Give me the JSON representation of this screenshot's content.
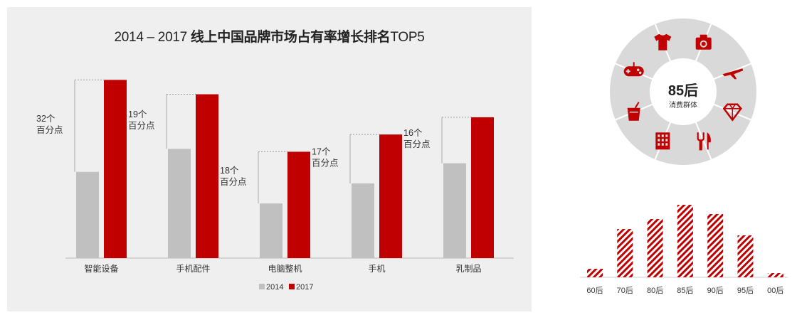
{
  "title": {
    "prefix": "2014 – 2017 ",
    "main": "线上中国品牌市场占有率增长排名",
    "suffix": "TOP5"
  },
  "colors": {
    "y2014": "#c0c0c0",
    "y2017": "#c00000",
    "wheel_bg": "#d9d9d9",
    "icon": "#c00000"
  },
  "chart_data": [
    {
      "type": "bar",
      "categories": [
        "智能设备",
        "手机配件",
        "电脑整机",
        "手机",
        "乳制品"
      ],
      "series": [
        {
          "name": "2014",
          "values": [
            30,
            38,
            19,
            26,
            33
          ]
        },
        {
          "name": "2017",
          "values": [
            62,
            57,
            37,
            43,
            49
          ]
        }
      ],
      "annotations": [
        {
          "lines": [
            "32个",
            "百分点"
          ]
        },
        {
          "lines": [
            "19个",
            "百分点"
          ]
        },
        {
          "lines": [
            "18个",
            "百分点"
          ]
        },
        {
          "lines": [
            "17个",
            "百分点"
          ]
        },
        {
          "lines": [
            "16个",
            "百分点"
          ]
        }
      ],
      "ylim": [
        0,
        70
      ],
      "legend": [
        "2014",
        "2017"
      ],
      "legend_position": "bottom-center"
    },
    {
      "type": "bar",
      "categories": [
        "60后",
        "70后",
        "80后",
        "85后",
        "90后",
        "95后",
        "00后"
      ],
      "values": [
        12,
        68,
        82,
        102,
        89,
        59,
        6
      ],
      "ylim": [
        0,
        110
      ],
      "pattern": "diagonal-stripes"
    }
  ],
  "wheel": {
    "center_main": "85后",
    "center_sub": "消费群体",
    "icons": [
      "tshirt-icon",
      "camera-icon",
      "airplane-icon",
      "diamond-icon",
      "fork-knife-icon",
      "building-icon",
      "drink-cup-icon",
      "gamepad-icon"
    ]
  }
}
